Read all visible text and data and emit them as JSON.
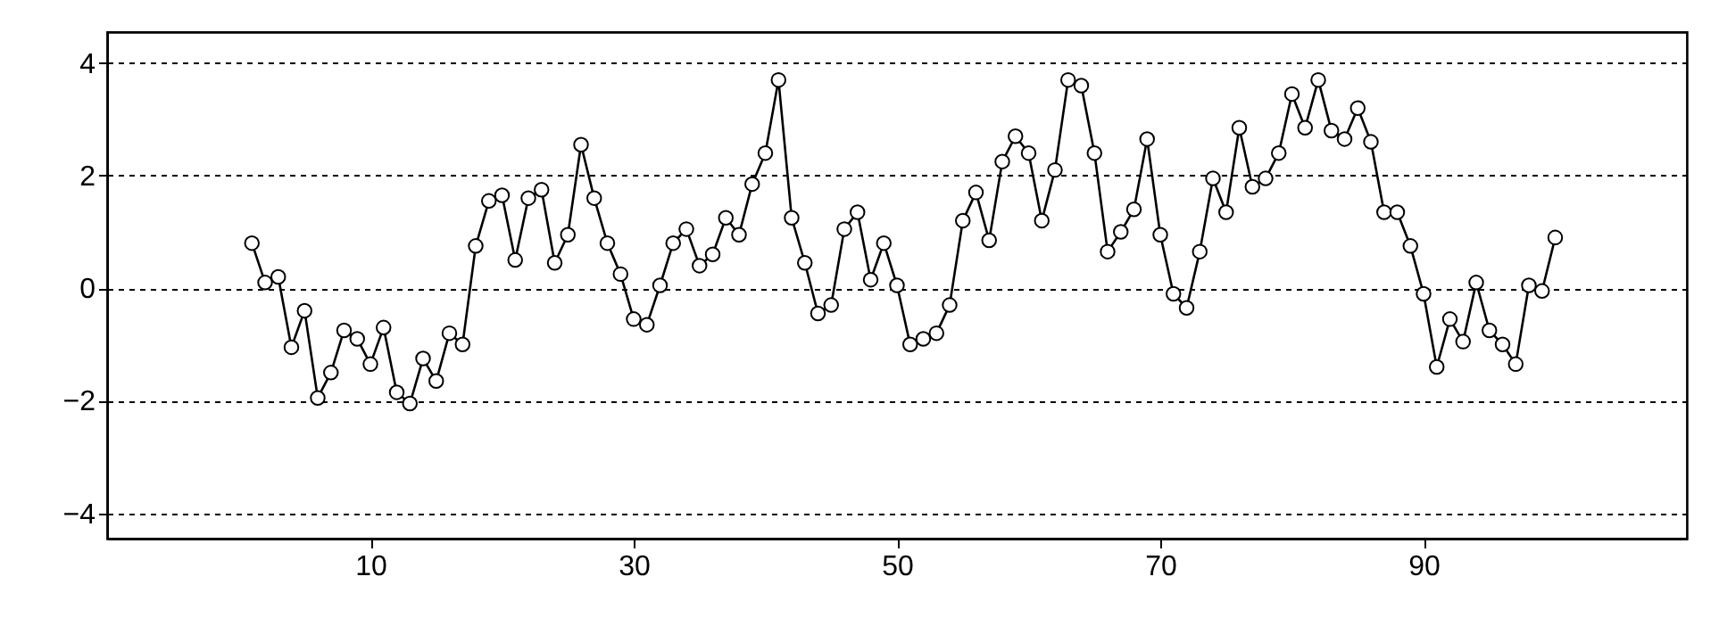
{
  "chart_data": {
    "type": "line",
    "x": [
      1,
      2,
      3,
      4,
      5,
      6,
      7,
      8,
      9,
      10,
      11,
      12,
      13,
      14,
      15,
      16,
      17,
      18,
      19,
      20,
      21,
      22,
      23,
      24,
      25,
      26,
      27,
      28,
      29,
      30,
      31,
      32,
      33,
      34,
      35,
      36,
      37,
      38,
      39,
      40,
      41,
      42,
      43,
      44,
      45,
      46,
      47,
      48,
      49,
      50,
      51,
      52,
      53,
      54,
      55,
      56,
      57,
      58,
      59,
      60,
      61,
      62,
      63,
      64,
      65,
      66,
      67,
      68,
      69,
      70,
      71,
      72,
      73,
      74,
      75,
      76,
      77,
      78,
      79,
      80,
      81,
      82,
      83,
      84,
      85,
      86,
      87,
      88,
      89,
      90,
      91,
      92,
      93,
      94,
      95,
      96,
      97,
      98,
      99,
      100
    ],
    "series": [
      {
        "color": "#000000",
        "values": [
          0.8,
          0.1,
          0.2,
          -1.05,
          -0.4,
          -1.95,
          -1.5,
          -0.75,
          -0.9,
          -1.35,
          -0.7,
          -1.85,
          -2.05,
          -1.25,
          -1.65,
          -0.8,
          -1.0,
          0.75,
          1.55,
          1.65,
          0.5,
          1.6,
          1.75,
          0.45,
          0.95,
          2.55,
          1.6,
          0.8,
          0.25,
          -0.55,
          -0.65,
          0.05,
          0.8,
          1.05,
          0.4,
          0.6,
          1.25,
          0.95,
          1.85,
          2.4,
          3.7,
          1.25,
          0.45,
          -0.45,
          -0.3,
          1.05,
          1.35,
          0.15,
          0.8,
          0.05,
          -1.0,
          -0.9,
          -0.8,
          -0.3,
          1.2,
          1.7,
          0.85,
          2.25,
          2.7,
          2.4,
          1.2,
          2.1,
          3.7,
          3.6,
          2.4,
          0.65,
          1.0,
          1.4,
          2.65,
          0.95,
          -0.1,
          -0.35,
          0.65,
          1.95,
          1.35,
          2.85,
          1.8,
          1.95,
          2.4,
          3.45,
          2.85,
          3.7,
          2.8,
          2.65,
          3.2,
          2.6,
          1.35,
          1.35,
          0.75,
          -0.1,
          -1.4,
          -0.55,
          -0.95,
          0.1,
          -0.75,
          -1.0,
          -1.35,
          0.05,
          -0.05,
          0.9
        ]
      }
    ],
    "xlim": [
      -10,
      110
    ],
    "xticks": [
      10,
      30,
      50,
      70,
      90
    ],
    "ylim": [
      -4.45,
      4.55
    ],
    "yticks": [
      -4,
      -2,
      0,
      2,
      4
    ],
    "grid": "y",
    "marker": "circle",
    "line_style": "solid"
  }
}
